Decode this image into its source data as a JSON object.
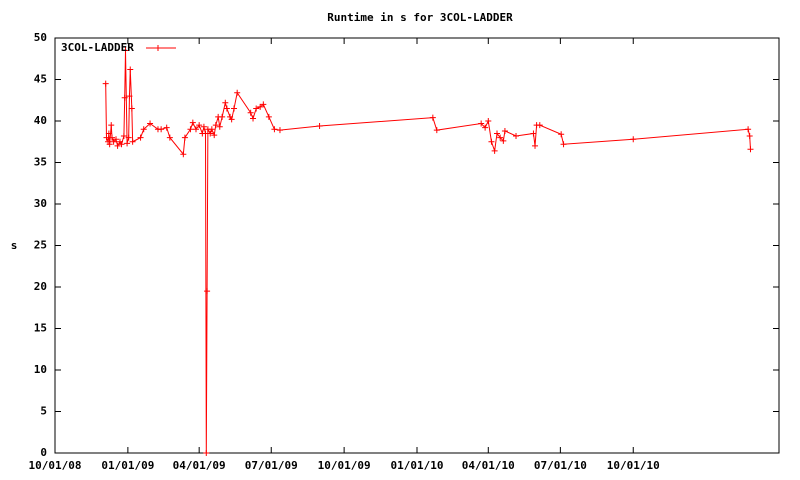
{
  "chart_data": {
    "type": "line",
    "title": "Runtime in s for 3COL-LADDER",
    "y_label": "s",
    "x": [
      "2008-12-04",
      "2008-12-05",
      "2008-12-07",
      "2008-12-08",
      "2008-12-09",
      "2008-12-11",
      "2008-12-12",
      "2008-12-14",
      "2008-12-17",
      "2008-12-19",
      "2008-12-22",
      "2008-12-24",
      "2008-12-27",
      "2008-12-28",
      "2008-12-29",
      "2008-12-31",
      "2009-01-02",
      "2009-01-03",
      "2009-01-04",
      "2009-01-06",
      "2009-01-07",
      "2009-01-17",
      "2009-01-21",
      "2009-01-29",
      "2009-02-08",
      "2009-02-12",
      "2009-02-19",
      "2009-02-23",
      "2009-03-12",
      "2009-03-14",
      "2009-03-21",
      "2009-03-24",
      "2009-03-28",
      "2009-04-01",
      "2009-04-05",
      "2009-04-07",
      "2009-04-09",
      "2009-04-10",
      "2009-04-11",
      "2009-04-12",
      "2009-04-15",
      "2009-04-17",
      "2009-04-20",
      "2009-04-22",
      "2009-04-25",
      "2009-04-27",
      "2009-04-30",
      "2009-05-04",
      "2009-05-06",
      "2009-05-10",
      "2009-05-12",
      "2009-05-15",
      "2009-05-19",
      "2009-06-05",
      "2009-06-08",
      "2009-06-12",
      "2009-06-17",
      "2009-06-21",
      "2009-06-28",
      "2009-07-05",
      "2009-07-12",
      "2009-08-31",
      "2010-01-21",
      "2010-01-26",
      "2010-03-23",
      "2010-03-28",
      "2010-04-01",
      "2010-04-05",
      "2010-04-09",
      "2010-04-12",
      "2010-04-16",
      "2010-04-20",
      "2010-04-22",
      "2010-05-06",
      "2010-05-28",
      "2010-05-30",
      "2010-06-01",
      "2010-06-05",
      "2010-07-02",
      "2010-07-05",
      "2010-10-01",
      "2011-02-23",
      "2011-02-25",
      "2011-02-26"
    ],
    "series": [
      {
        "name": "3COL-LADDER",
        "color": "#ff0000",
        "values": [
          44.5,
          38,
          37.5,
          38.5,
          37.2,
          39.5,
          38,
          37.5,
          37.8,
          37,
          37.5,
          37.2,
          38.2,
          42.8,
          48.5,
          37.3,
          38,
          43,
          46.2,
          41.5,
          37.5,
          38,
          39,
          39.7,
          39,
          39,
          39.2,
          38,
          36,
          38,
          39,
          39.8,
          39,
          39.5,
          38.5,
          39.3,
          38.5,
          0,
          19.5,
          39,
          38.5,
          39,
          38.3,
          39.5,
          40.5,
          39.3,
          40.5,
          42.2,
          41.5,
          40.5,
          40.2,
          41.5,
          43.4,
          41,
          40.3,
          41.5,
          41.7,
          42,
          40.5,
          39,
          38.9,
          39.4,
          40.4,
          38.9,
          39.7,
          39.2,
          40,
          37.5,
          36.4,
          38.5,
          38,
          37.6,
          38.8,
          38.2,
          38.5,
          37,
          39.5,
          39.5,
          38.4,
          37.2,
          37.8,
          39,
          38.2,
          36.6
        ]
      }
    ],
    "xlim": [
      "2008-10-01",
      "2011-04-03"
    ],
    "xticks": [
      {
        "value": "2008-10-01",
        "label": "10/01/08"
      },
      {
        "value": "2009-01-01",
        "label": "01/01/09"
      },
      {
        "value": "2009-04-01",
        "label": "04/01/09"
      },
      {
        "value": "2009-07-01",
        "label": "07/01/09"
      },
      {
        "value": "2009-10-01",
        "label": "10/01/09"
      },
      {
        "value": "2010-01-01",
        "label": "01/01/10"
      },
      {
        "value": "2010-04-01",
        "label": "04/01/10"
      },
      {
        "value": "2010-07-01",
        "label": "07/01/10"
      },
      {
        "value": "2010-10-01",
        "label": "10/01/10"
      }
    ],
    "ylim": [
      0,
      50
    ],
    "yticks": [
      0,
      5,
      10,
      15,
      20,
      25,
      30,
      35,
      40,
      45,
      50
    ],
    "legend": "top-left"
  }
}
